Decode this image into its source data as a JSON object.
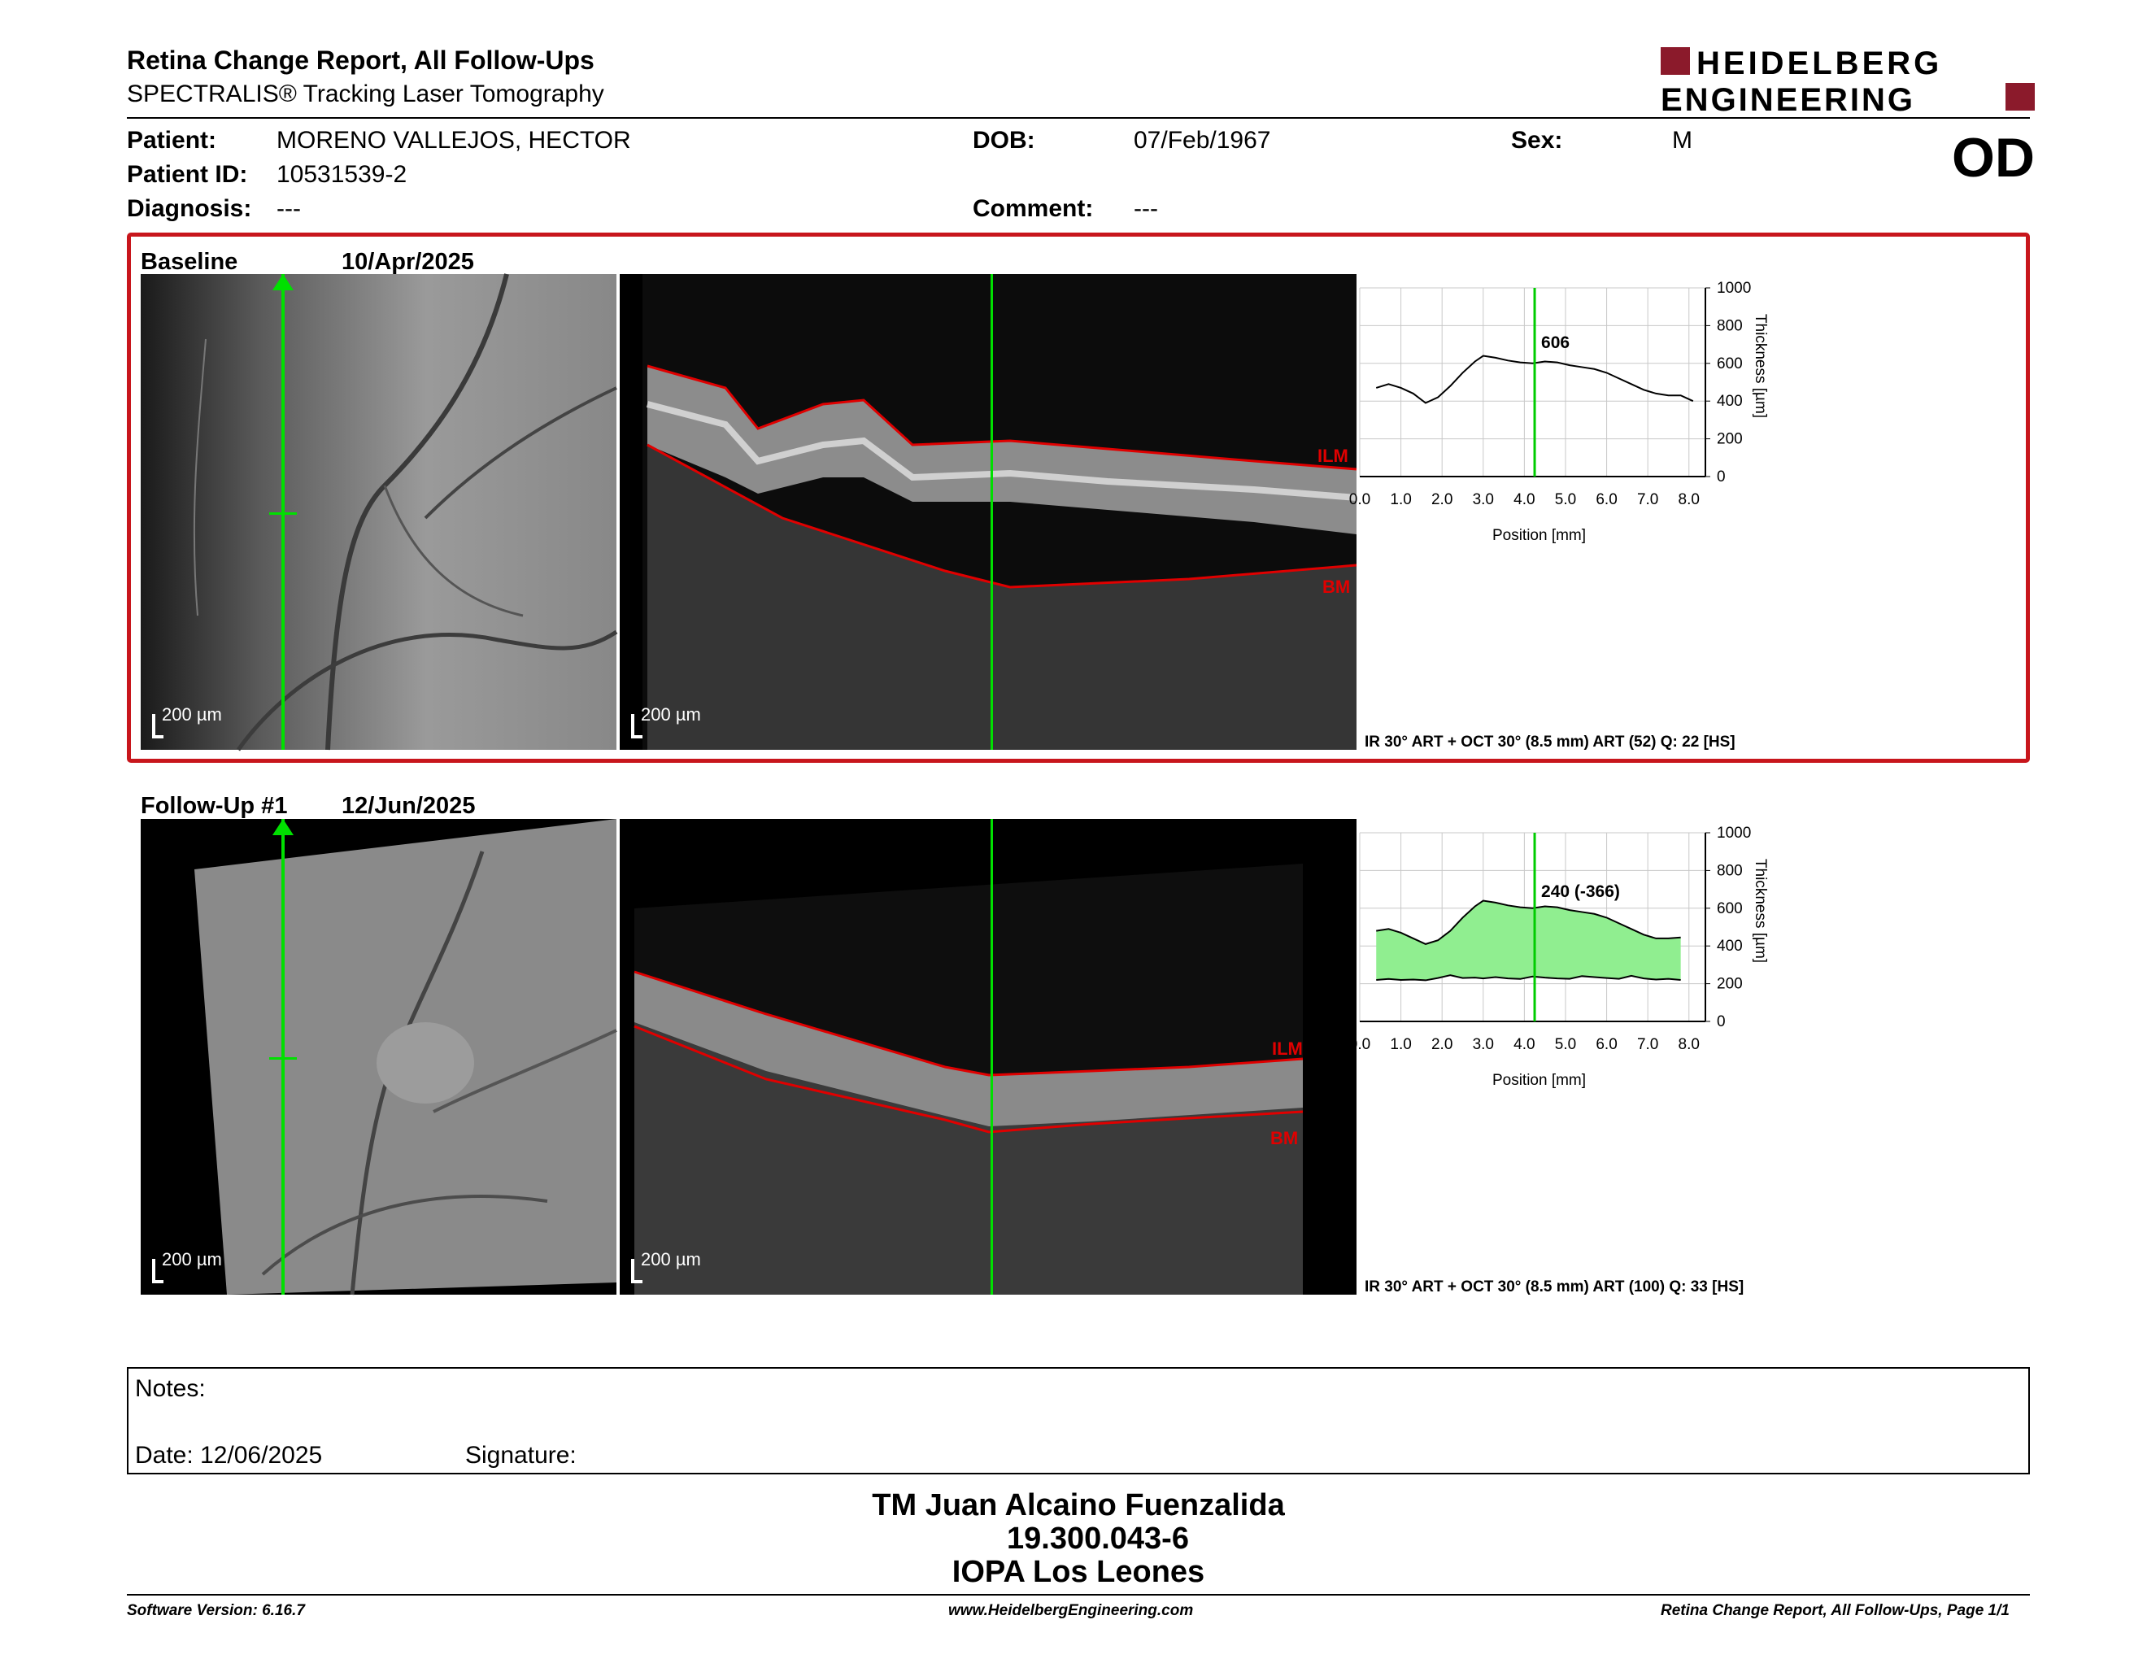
{
  "report": {
    "title": "Retina Change Report, All Follow-Ups",
    "subtitle": "SPECTRALIS® Tracking Laser Tomography",
    "brand_line1": "HEIDELBERG",
    "brand_line2": "ENGINEERING",
    "brand_color": "#8b1a2b",
    "eye": "OD"
  },
  "patient": {
    "name_label": "Patient:",
    "name": "MORENO VALLEJOS, HECTOR",
    "id_label": "Patient ID:",
    "id": "10531539-2",
    "diagnosis_label": "Diagnosis:",
    "diagnosis": "---",
    "dob_label": "DOB:",
    "dob": "07/Feb/1967",
    "comment_label": "Comment:",
    "comment": "---",
    "sex_label": "Sex:",
    "sex": "M"
  },
  "baseline": {
    "label": "Baseline",
    "date": "10/Apr/2025",
    "scale_fundus": "200 µm",
    "scale_oct": "200 µm",
    "ilm": "ILM",
    "bm": "BM",
    "acquisition": "IR 30° ART + OCT 30° (8.5 mm) ART (52) Q: 22 [HS]",
    "cursor_value": "606"
  },
  "followup": {
    "label": "Follow-Up #1",
    "date": "12/Jun/2025",
    "scale_fundus": "200 µm",
    "scale_oct": "200 µm",
    "ilm": "ILM",
    "bm": "BM",
    "acquisition": "IR 30° ART + OCT 30° (8.5 mm) ART (100) Q: 33 [HS]",
    "cursor_value": "240 (-366)"
  },
  "graph_axes": {
    "x_label": "Position [mm]",
    "y_label": "Thickness [µm]",
    "x_ticks": [
      "0.0",
      "1.0",
      "2.0",
      "3.0",
      "4.0",
      "5.0",
      "6.0",
      "7.0",
      "8.0"
    ],
    "y_ticks": [
      "0",
      "200",
      "400",
      "600",
      "800",
      "1000"
    ],
    "line_color": "#00cc00",
    "fill_color": "#90ee90"
  },
  "chart_data": [
    {
      "type": "line",
      "xlabel": "Position [mm]",
      "ylabel": "Thickness [µm]",
      "xlim": [
        0,
        8.4
      ],
      "ylim": [
        0,
        1000
      ],
      "grid": true,
      "cursor_x": 4.25,
      "x": [
        0.4,
        0.7,
        1.0,
        1.3,
        1.6,
        1.9,
        2.2,
        2.5,
        2.8,
        3.0,
        3.3,
        3.6,
        3.9,
        4.2,
        4.5,
        4.8,
        5.1,
        5.4,
        5.7,
        6.0,
        6.3,
        6.6,
        6.9,
        7.2,
        7.5,
        7.8,
        8.1
      ],
      "series": [
        {
          "values": [
            470,
            490,
            470,
            440,
            390,
            420,
            480,
            550,
            610,
            640,
            630,
            615,
            605,
            600,
            610,
            605,
            590,
            580,
            570,
            550,
            520,
            490,
            460,
            440,
            430,
            430,
            400
          ]
        }
      ]
    },
    {
      "type": "area",
      "xlabel": "Position [mm]",
      "ylabel": "Thickness [µm]",
      "xlim": [
        0,
        8.4
      ],
      "ylim": [
        0,
        1000
      ],
      "grid": true,
      "cursor_x": 4.25,
      "x": [
        0.4,
        0.7,
        1.0,
        1.3,
        1.6,
        1.9,
        2.2,
        2.5,
        2.8,
        3.0,
        3.3,
        3.6,
        3.9,
        4.2,
        4.5,
        4.8,
        5.1,
        5.4,
        5.7,
        6.0,
        6.3,
        6.6,
        6.9,
        7.2,
        7.5,
        7.8
      ],
      "series": [
        {
          "values": [
            480,
            490,
            470,
            440,
            410,
            430,
            480,
            550,
            610,
            640,
            630,
            615,
            605,
            600,
            610,
            605,
            590,
            580,
            570,
            550,
            520,
            490,
            460,
            440,
            440,
            445
          ]
        },
        {
          "values": [
            220,
            225,
            220,
            222,
            218,
            230,
            245,
            230,
            232,
            228,
            235,
            228,
            225,
            238,
            232,
            228,
            226,
            240,
            235,
            230,
            226,
            242,
            228,
            222,
            226,
            220
          ]
        }
      ]
    }
  ],
  "notes": {
    "notes_label": "Notes:",
    "date_label": "Date: 12/06/2025",
    "signature_label": "Signature:"
  },
  "signatory": {
    "name": "TM Juan Alcaino Fuenzalida",
    "rut": "19.300.043-6",
    "institution": "IOPA Los Leones"
  },
  "footer": {
    "software": "Software Version: 6.16.7",
    "website": "www.HeidelbergEngineering.com",
    "page": "Retina Change Report, All Follow-Ups, Page 1/1"
  }
}
